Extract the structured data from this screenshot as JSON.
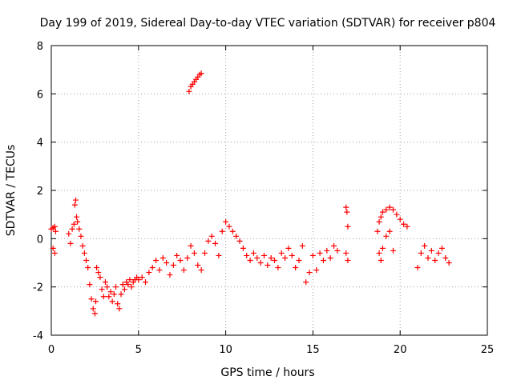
{
  "chart_data": {
    "type": "scatter",
    "title": "Day 199 of 2019, Sidereal Day-to-day VTEC variation (SDTVAR) for receiver p804",
    "xlabel": "GPS time / hours",
    "ylabel": "SDTVAR / TECUs",
    "xlim": [
      0,
      25
    ],
    "ylim": [
      -4,
      8
    ],
    "xticks": [
      0,
      5,
      10,
      15,
      20,
      25
    ],
    "yticks": [
      -4,
      -2,
      0,
      2,
      4,
      6,
      8
    ],
    "xtick_labels": [
      "0",
      "5",
      "10",
      "15",
      "20",
      "25"
    ],
    "ytick_labels": [
      "-4",
      "-2",
      "0",
      "2",
      "4",
      "6",
      "8"
    ],
    "grid": true,
    "marker": "plus",
    "series_color": "#ff0000",
    "series": [
      {
        "name": "SDTVAR",
        "x": [
          0.0,
          0.1,
          0.2,
          0.25,
          0.1,
          0.2,
          1.0,
          1.1,
          1.2,
          1.3,
          1.35,
          1.4,
          1.45,
          1.5,
          1.6,
          1.7,
          1.8,
          1.9,
          2.0,
          2.1,
          2.2,
          2.3,
          2.4,
          2.5,
          2.55,
          2.6,
          2.7,
          2.8,
          2.9,
          3.0,
          3.1,
          3.2,
          3.3,
          3.4,
          3.5,
          3.6,
          3.7,
          3.8,
          3.9,
          4.0,
          4.1,
          4.2,
          4.3,
          4.4,
          4.5,
          4.6,
          4.7,
          4.8,
          4.9,
          5.0,
          5.2,
          5.4,
          5.6,
          5.8,
          6.0,
          6.2,
          6.4,
          6.6,
          6.8,
          7.0,
          7.2,
          7.4,
          7.6,
          7.8,
          8.0,
          8.2,
          8.4,
          8.6,
          7.9,
          8.0,
          8.1,
          8.2,
          8.3,
          8.4,
          8.5,
          8.6,
          8.8,
          9.0,
          9.2,
          9.4,
          9.6,
          9.8,
          10.0,
          10.2,
          10.4,
          10.6,
          10.8,
          11.0,
          11.2,
          11.4,
          11.6,
          11.8,
          12.0,
          12.2,
          12.4,
          12.6,
          12.8,
          13.0,
          13.2,
          13.4,
          13.6,
          13.8,
          14.0,
          14.2,
          14.4,
          14.6,
          14.8,
          15.0,
          15.2,
          15.4,
          15.6,
          15.8,
          16.0,
          16.2,
          16.4,
          16.9,
          16.95,
          17.0,
          16.9,
          17.0,
          18.7,
          18.8,
          18.9,
          19.0,
          19.2,
          19.4,
          19.6,
          19.8,
          20.0,
          20.2,
          20.4,
          18.8,
          18.9,
          19.0,
          19.2,
          19.4,
          19.6,
          21.0,
          21.2,
          21.4,
          21.6,
          21.8,
          22.0,
          22.2,
          22.4,
          22.6,
          22.8
        ],
        "y": [
          0.4,
          0.45,
          0.5,
          0.3,
          -0.4,
          -0.6,
          0.2,
          -0.2,
          0.4,
          0.6,
          1.4,
          1.6,
          0.9,
          0.7,
          0.4,
          0.1,
          -0.3,
          -0.6,
          -0.9,
          -1.2,
          -1.9,
          -2.5,
          -2.9,
          -3.1,
          -2.6,
          -1.2,
          -1.4,
          -1.6,
          -2.1,
          -2.4,
          -1.8,
          -2.0,
          -2.4,
          -2.2,
          -2.6,
          -2.3,
          -2.0,
          -2.7,
          -2.9,
          -2.3,
          -1.9,
          -2.1,
          -1.8,
          -1.9,
          -1.7,
          -2.0,
          -1.8,
          -1.7,
          -1.6,
          -1.7,
          -1.6,
          -1.8,
          -1.4,
          -1.2,
          -0.9,
          -1.3,
          -0.8,
          -1.0,
          -1.5,
          -1.1,
          -0.7,
          -0.9,
          -1.3,
          -0.8,
          -0.3,
          -0.6,
          -1.1,
          -1.3,
          6.1,
          6.3,
          6.4,
          6.5,
          6.6,
          6.7,
          6.8,
          6.85,
          -0.6,
          -0.1,
          0.1,
          -0.2,
          -0.7,
          0.3,
          0.7,
          0.5,
          0.3,
          0.1,
          -0.1,
          -0.4,
          -0.7,
          -0.9,
          -0.6,
          -0.8,
          -1.0,
          -0.7,
          -1.1,
          -0.8,
          -0.9,
          -1.2,
          -0.6,
          -0.8,
          -0.4,
          -0.7,
          -1.2,
          -0.9,
          -0.3,
          -1.8,
          -1.4,
          -0.7,
          -1.3,
          -0.6,
          -0.9,
          -0.5,
          -0.8,
          -0.3,
          -0.5,
          1.3,
          1.1,
          0.5,
          -0.6,
          -0.9,
          0.3,
          0.7,
          0.9,
          1.1,
          1.2,
          1.3,
          1.2,
          1.0,
          0.8,
          0.6,
          0.5,
          -0.6,
          -0.9,
          -0.4,
          0.1,
          0.3,
          -0.5,
          -1.2,
          -0.6,
          -0.3,
          -0.8,
          -0.5,
          -0.9,
          -0.6,
          -0.4,
          -0.8,
          -1.0
        ]
      }
    ]
  }
}
